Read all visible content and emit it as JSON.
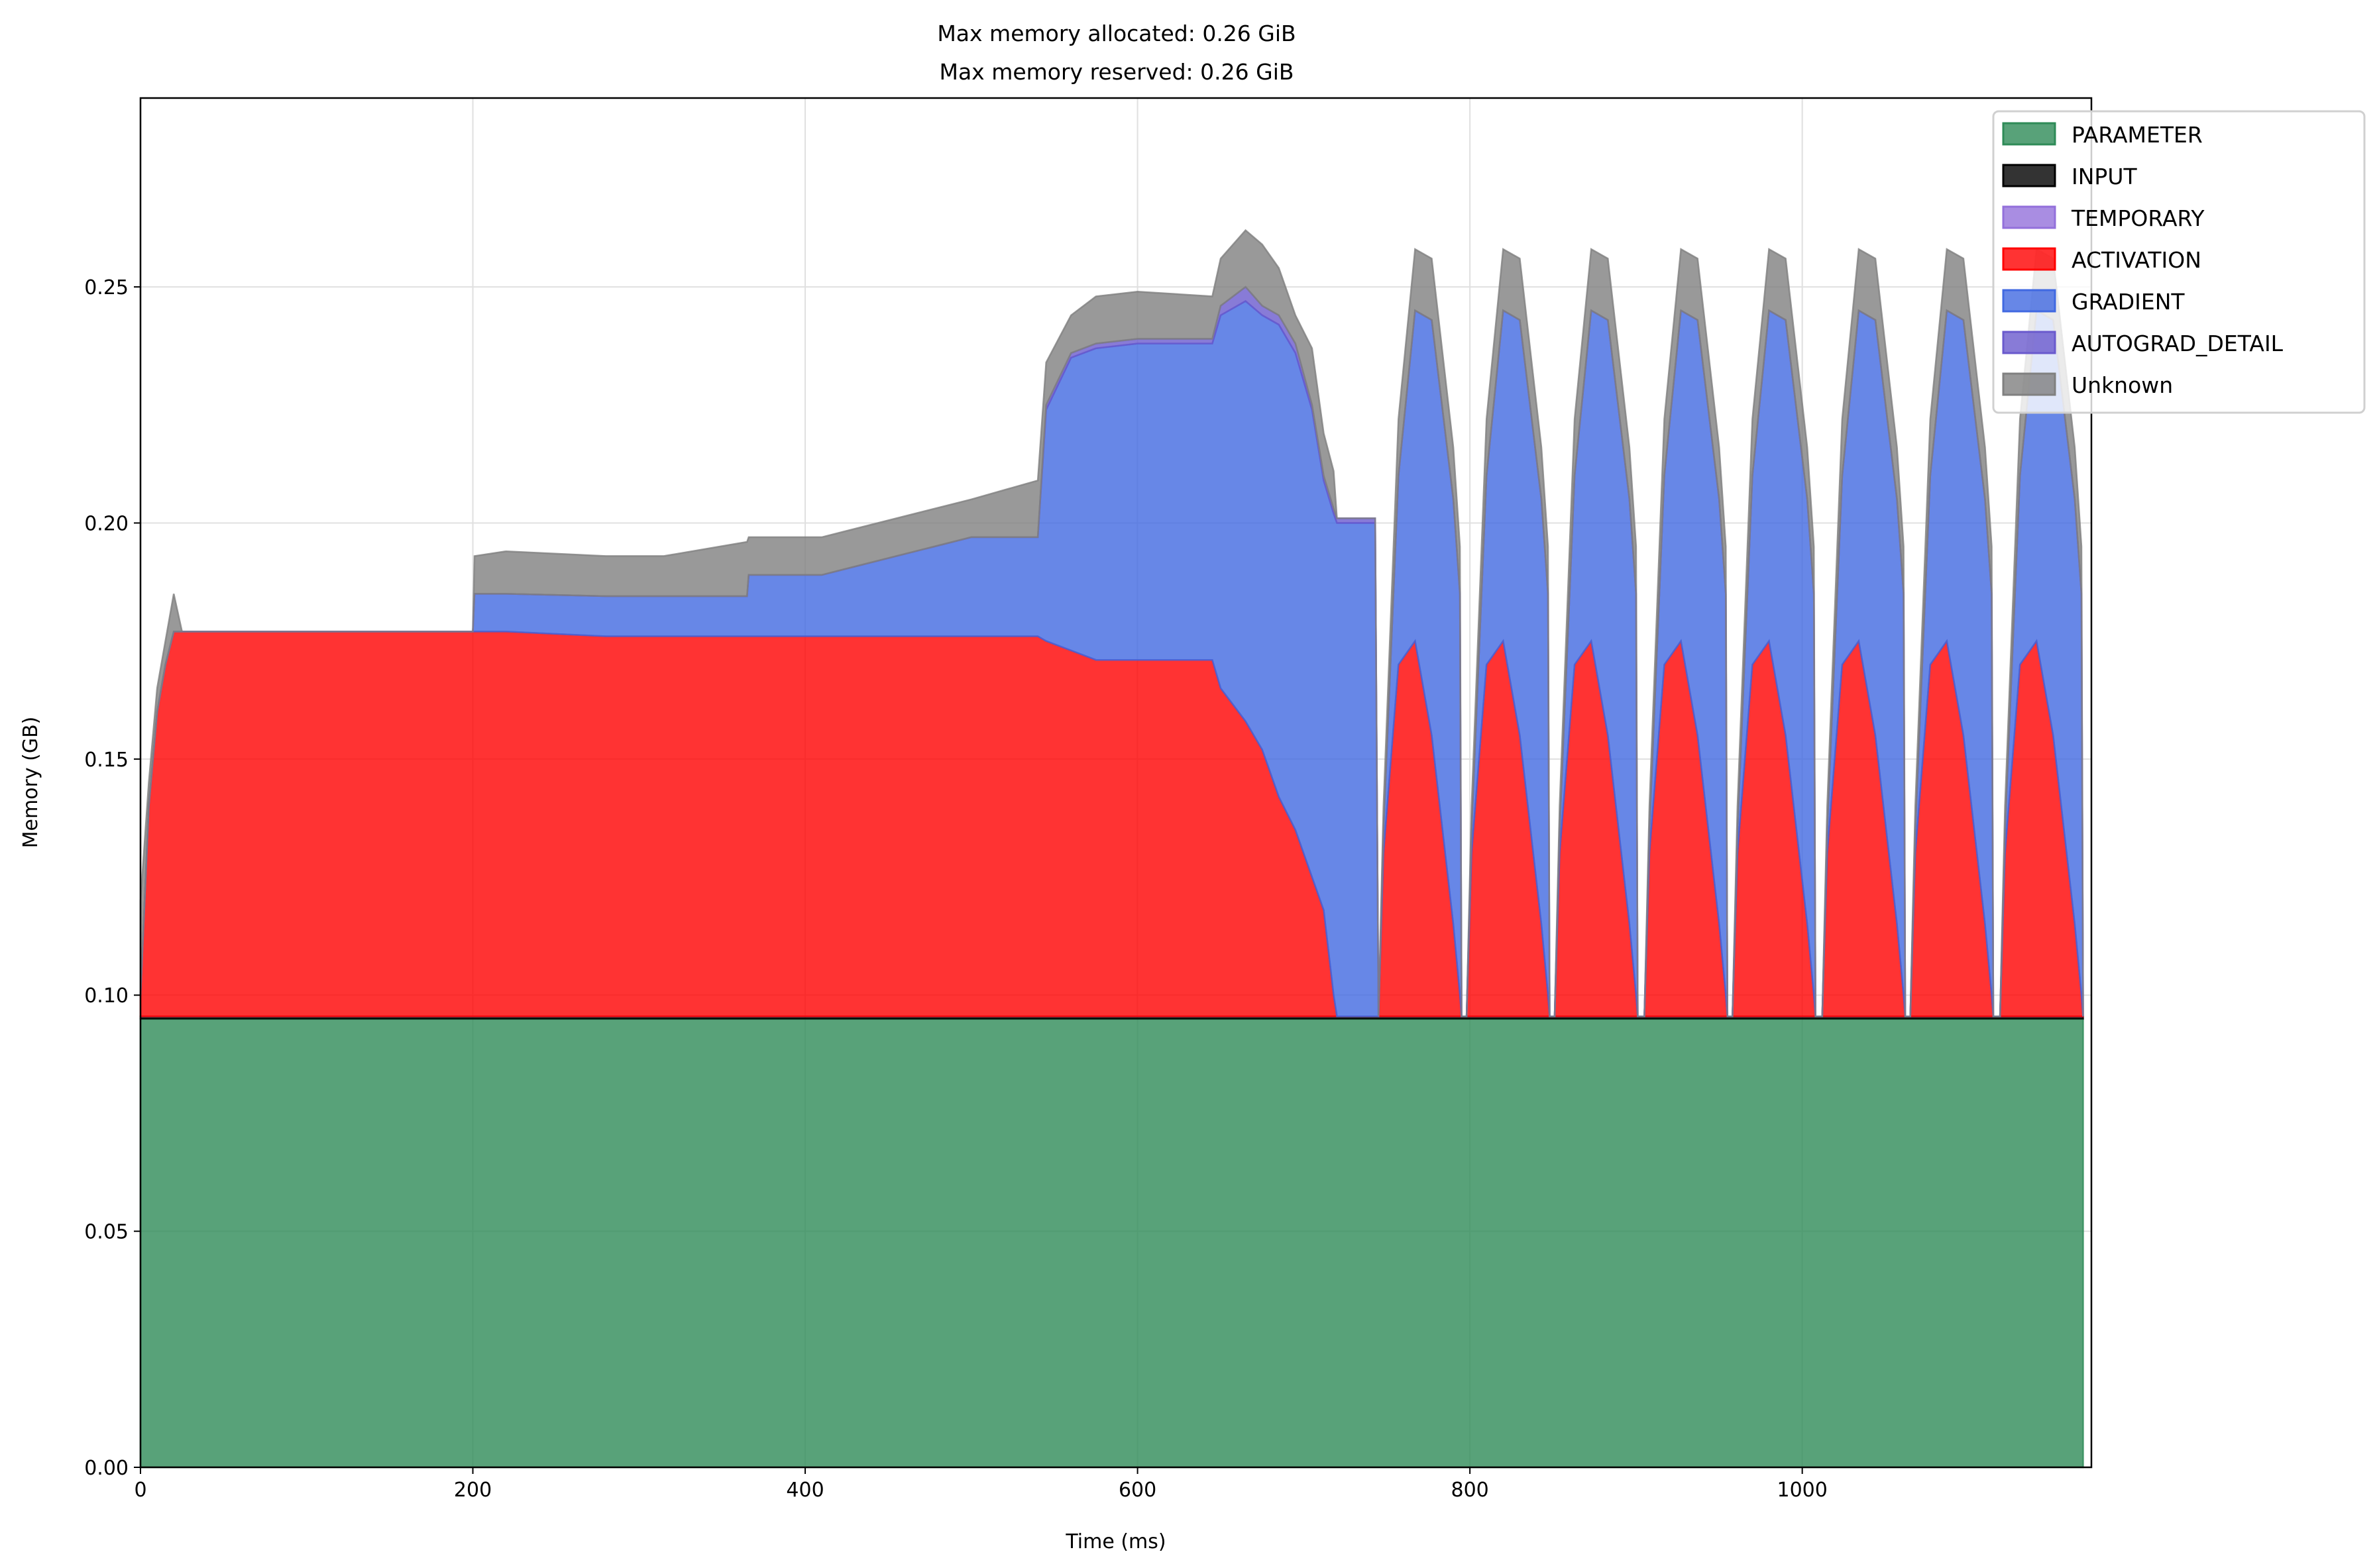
{
  "chart_data": {
    "type": "area",
    "stacked": true,
    "title": [
      "Max memory allocated: 0.26 GiB",
      "Max memory reserved: 0.26 GiB"
    ],
    "xlabel": "Time (ms)",
    "ylabel": "Memory (GB)",
    "xlim": [
      0,
      1174
    ],
    "ylim": [
      0,
      0.29
    ],
    "xticks": [
      0,
      200,
      400,
      600,
      800,
      1000
    ],
    "xtick_labels": [
      "0",
      "200",
      "400",
      "600",
      "800",
      "1000"
    ],
    "yticks": [
      0,
      0.05,
      0.1,
      0.15,
      0.2,
      0.25
    ],
    "ytick_labels": [
      "0.00",
      "0.05",
      "0.10",
      "0.15",
      "0.20",
      "0.25"
    ],
    "grid": true,
    "legend_position": "top-right",
    "x": [
      0,
      5,
      10,
      15,
      20,
      25,
      200,
      201,
      220,
      280,
      315,
      365,
      366,
      410,
      500,
      540,
      545,
      560,
      575,
      600,
      645,
      650,
      665,
      675,
      685,
      695,
      705,
      712,
      718,
      720,
      743,
      745,
      748,
      757,
      767,
      777,
      790,
      794,
      795,
      798,
      801,
      810,
      820,
      830,
      843,
      847,
      848,
      851,
      854,
      863,
      873,
      883,
      896,
      900,
      901,
      905,
      908,
      917,
      927,
      937,
      950,
      954,
      955,
      958,
      961,
      970,
      980,
      990,
      1003,
      1007,
      1008,
      1012,
      1015,
      1024,
      1034,
      1044,
      1057,
      1061,
      1062,
      1065,
      1068,
      1077,
      1087,
      1097,
      1110,
      1114,
      1115,
      1119,
      1122,
      1131,
      1141,
      1151,
      1164,
      1168,
      1169
    ],
    "series": [
      {
        "name": "PARAMETER",
        "color": "#2e8b57",
        "constant": 0.095
      },
      {
        "name": "INPUT",
        "color": "#000000",
        "constant": 0.0005
      },
      {
        "name": "TEMPORARY",
        "color": "#9370db",
        "constant": 0
      },
      {
        "name": "ACTIVATION",
        "color": "#ff0000",
        "values": [
          0.0045,
          0.0445,
          0.0645,
          0.0745,
          0.0815,
          0.0815,
          0.0815,
          0.0815,
          0.0815,
          0.0805,
          0.0805,
          0.0805,
          0.0805,
          0.0805,
          0.0805,
          0.0805,
          0.0795,
          0.0775,
          0.0755,
          0.0755,
          0.0755,
          0.0695,
          0.0625,
          0.0565,
          0.0465,
          0.0395,
          0.0295,
          0.0225,
          0.0045,
          0,
          0,
          0,
          0.0345,
          0.0745,
          0.0795,
          0.0595,
          0.0195,
          0.0045,
          0,
          0,
          0.0345,
          0.0745,
          0.0795,
          0.0595,
          0.0195,
          0.0045,
          0,
          0,
          0.0345,
          0.0745,
          0.0795,
          0.0595,
          0.0195,
          0.0045,
          0,
          0,
          0.0345,
          0.0745,
          0.0795,
          0.0595,
          0.0195,
          0.0045,
          0,
          0,
          0.0345,
          0.0745,
          0.0795,
          0.0595,
          0.0195,
          0.0045,
          0,
          0,
          0.0345,
          0.0745,
          0.0795,
          0.0595,
          0.0195,
          0.0045,
          0,
          0,
          0.0345,
          0.0745,
          0.0795,
          0.0595,
          0.0195,
          0.0045,
          0,
          0,
          0.0345,
          0.0745,
          0.0795,
          0.0595,
          0.0195,
          0.0045,
          0
        ]
      },
      {
        "name": "GRADIENT",
        "color": "#4169e1",
        "values": [
          0,
          0,
          0,
          0,
          0,
          0,
          0,
          0.008,
          0.008,
          0.0085,
          0.0085,
          0.0085,
          0.013,
          0.013,
          0.021,
          0.021,
          0.049,
          0.062,
          0.066,
          0.067,
          0.067,
          0.079,
          0.089,
          0.092,
          0.1,
          0.101,
          0.099,
          0.091,
          0.102,
          0.1045,
          0.1045,
          0,
          0.005,
          0.04,
          0.07,
          0.088,
          0.09,
          0.085,
          0,
          0,
          0.005,
          0.04,
          0.07,
          0.088,
          0.09,
          0.085,
          0,
          0,
          0.005,
          0.04,
          0.07,
          0.088,
          0.09,
          0.085,
          0,
          0,
          0.005,
          0.04,
          0.07,
          0.088,
          0.09,
          0.085,
          0,
          0,
          0.005,
          0.04,
          0.07,
          0.088,
          0.09,
          0.085,
          0,
          0,
          0.005,
          0.04,
          0.07,
          0.088,
          0.09,
          0.085,
          0,
          0,
          0.005,
          0.04,
          0.07,
          0.088,
          0.09,
          0.085,
          0,
          0,
          0.005,
          0.04,
          0.07,
          0.088,
          0.09,
          0.085,
          0
        ]
      },
      {
        "name": "AUTOGRAD_DETAIL",
        "color": "#6a5acd",
        "values": [
          0,
          0,
          0,
          0,
          0,
          0,
          0,
          0,
          0,
          0,
          0,
          0,
          0,
          0,
          0,
          0,
          0.001,
          0.001,
          0.001,
          0.001,
          0.001,
          0.002,
          0.003,
          0.002,
          0.002,
          0.002,
          0.001,
          0.001,
          0.001,
          0.001,
          0.001,
          0,
          0,
          0,
          0,
          0,
          0,
          0,
          0,
          0,
          0,
          0,
          0,
          0,
          0,
          0,
          0,
          0,
          0,
          0,
          0,
          0,
          0,
          0,
          0,
          0,
          0,
          0,
          0,
          0,
          0,
          0,
          0,
          0,
          0,
          0,
          0,
          0,
          0,
          0,
          0,
          0,
          0,
          0,
          0,
          0,
          0,
          0,
          0,
          0,
          0,
          0,
          0,
          0,
          0,
          0,
          0,
          0,
          0,
          0,
          0,
          0,
          0,
          0,
          0
        ]
      },
      {
        "name": "Unknown",
        "color": "#808080",
        "values": [
          0.02,
          0.005,
          0.005,
          0.005,
          0.008,
          0,
          0,
          0.008,
          0.009,
          0.0085,
          0.0085,
          0.0115,
          0.008,
          0.008,
          0.008,
          0.012,
          0.009,
          0.008,
          0.01,
          0.01,
          0.009,
          0.01,
          0.012,
          0.013,
          0.01,
          0.006,
          0.012,
          0.009,
          0.008,
          0,
          0,
          0,
          0.005,
          0.012,
          0.013,
          0.013,
          0.011,
          0.01,
          0,
          0,
          0.005,
          0.012,
          0.013,
          0.013,
          0.011,
          0.01,
          0,
          0,
          0.005,
          0.012,
          0.013,
          0.013,
          0.011,
          0.01,
          0,
          0,
          0.005,
          0.012,
          0.013,
          0.013,
          0.011,
          0.01,
          0,
          0,
          0.005,
          0.012,
          0.013,
          0.013,
          0.011,
          0.01,
          0,
          0,
          0.005,
          0.012,
          0.013,
          0.013,
          0.011,
          0.01,
          0,
          0,
          0.005,
          0.012,
          0.013,
          0.013,
          0.011,
          0.01,
          0,
          0,
          0.005,
          0.012,
          0.013,
          0.013,
          0.011,
          0.01,
          0
        ]
      }
    ]
  }
}
